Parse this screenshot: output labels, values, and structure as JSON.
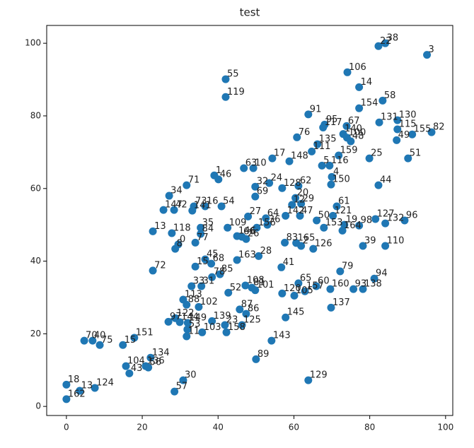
{
  "chart_data": {
    "type": "scatter",
    "title": "test",
    "color": "#1f77b4",
    "xlim": [
      -5.2,
      101.9
    ],
    "ylim": [
      -2.5,
      104.9
    ],
    "xticks": [
      0,
      20,
      40,
      60,
      80,
      100
    ],
    "yticks": [
      0,
      20,
      40,
      60,
      80,
      100
    ],
    "point_labels": [
      "3",
      "18",
      "162",
      "13",
      "22",
      "38",
      "106",
      "14",
      "58",
      "154",
      "55",
      "119",
      "91",
      "130",
      "131",
      "115",
      "82",
      "155",
      "49",
      "95",
      "117",
      "67",
      "76",
      "140",
      "100",
      "48",
      "135",
      "111",
      "159",
      "25",
      "51",
      "17",
      "148",
      "5",
      "116",
      "63",
      "10",
      "1",
      "46",
      "4",
      "150",
      "44",
      "71",
      "32",
      "24",
      "128",
      "62",
      "34",
      "69",
      "20",
      "29",
      "147",
      "42",
      "73",
      "16",
      "54",
      "141",
      "61",
      "12",
      "27",
      "64",
      "142",
      "47",
      "121",
      "50",
      "127",
      "132",
      "96",
      "19",
      "98",
      "164",
      "153",
      "156",
      "36",
      "35",
      "109",
      "13",
      "118",
      "84",
      "146",
      "66",
      "26",
      "83",
      "165",
      "2",
      "126",
      "39",
      "110",
      "0",
      "8",
      "77",
      "28",
      "163",
      "41",
      "72",
      "45",
      "15",
      "68",
      "85",
      "79",
      "78",
      "33",
      "31",
      "94",
      "65",
      "60",
      "160",
      "93",
      "138",
      "108",
      "81",
      "101",
      "52",
      "120",
      "157",
      "105",
      "113",
      "88",
      "102",
      "87",
      "86",
      "137",
      "145",
      "139",
      "23",
      "125",
      "97",
      "122",
      "144",
      "149",
      "53",
      "103",
      "158",
      "11",
      "143",
      "70",
      "40",
      "75",
      "151",
      "15",
      "89",
      "134",
      "104",
      "43",
      "136",
      "56",
      "30",
      "57",
      "124",
      "129"
    ],
    "x": [
      95.1,
      0,
      0,
      3.5,
      82.3,
      84.1,
      74.1,
      77.2,
      83.4,
      77.2,
      42,
      42,
      63.8,
      87.3,
      82.5,
      87.3,
      96.3,
      91.2,
      87.1,
      68.1,
      67.7,
      73.9,
      60.8,
      73,
      74,
      75,
      66.2,
      64.7,
      71.8,
      79.9,
      90.1,
      54.3,
      58.8,
      67.4,
      69.4,
      46.8,
      49.3,
      39,
      40.1,
      70,
      69.8,
      82.3,
      31.7,
      49.8,
      53.5,
      56.9,
      61.2,
      27.1,
      49.8,
      60.4,
      61.9,
      25.6,
      28.4,
      33.6,
      36.6,
      40.9,
      33.2,
      71.3,
      59.5,
      47.9,
      52.6,
      57.8,
      61.6,
      70.3,
      66,
      81.5,
      84.1,
      89.2,
      73.3,
      77.2,
      72.8,
      67.9,
      50.2,
      53,
      35.4,
      42.5,
      22.8,
      27.8,
      35.4,
      45,
      46.3,
      47.4,
      57.6,
      60.6,
      61.9,
      65.1,
      78.2,
      84.1,
      29.5,
      28.7,
      34,
      50.7,
      45,
      56.7,
      22.8,
      36.6,
      34,
      38.2,
      40.5,
      72.2,
      38.4,
      33,
      35.6,
      81.2,
      61.2,
      65.9,
      69.6,
      75.7,
      78.2,
      47.2,
      48.9,
      49.8,
      42.7,
      56.9,
      62.9,
      60.1,
      30.8,
      31.7,
      34.9,
      45.7,
      47.4,
      69.8,
      57.8,
      38.4,
      41.8,
      46.3,
      26.9,
      28.7,
      29.9,
      32,
      31.9,
      35.8,
      42.2,
      31.7,
      54.1,
      4.7,
      6.9,
      8.8,
      17.9,
      14.9,
      50,
      22.2,
      15.7,
      16.6,
      20.9,
      21.6,
      30.8,
      28.5,
      7.5,
      63.8
    ],
    "y": [
      96.8,
      6,
      2,
      4.3,
      99.2,
      100,
      92,
      87.9,
      84.2,
      82.1,
      90.1,
      85.2,
      80.4,
      78.8,
      78.2,
      76.3,
      75.5,
      74.9,
      73.3,
      77.6,
      76.8,
      77.2,
      74.1,
      75,
      74,
      73,
      72.2,
      70.2,
      69.1,
      68.3,
      68.3,
      68.3,
      67.5,
      66.3,
      66.3,
      65.6,
      65.6,
      63.6,
      62.5,
      63.2,
      61.1,
      60.9,
      60.9,
      60.5,
      61.5,
      60.1,
      60.7,
      58,
      57.8,
      57.4,
      55.8,
      54.1,
      54.1,
      55.1,
      55.1,
      55.1,
      53.9,
      55.1,
      55.5,
      52.3,
      51.8,
      52.5,
      52.5,
      52.5,
      51.2,
      51.6,
      50.4,
      51.2,
      50,
      49.8,
      48.4,
      49.2,
      49.2,
      50,
      49.2,
      49.2,
      48.2,
      47.7,
      47.5,
      46.9,
      46.7,
      46.1,
      45.1,
      45,
      44.2,
      43.4,
      44.2,
      44.2,
      44.6,
      43.4,
      45.1,
      41.4,
      40.3,
      38.3,
      37.4,
      40.5,
      38.5,
      39.3,
      36.4,
      37.2,
      35.6,
      33.1,
      33.1,
      35.2,
      33.9,
      33.1,
      32.3,
      32.3,
      32.3,
      33.3,
      32.7,
      32,
      31.3,
      31.1,
      31.7,
      30.5,
      29.4,
      28,
      27.4,
      26.7,
      25.5,
      27.2,
      24.5,
      23.5,
      22.4,
      22.4,
      23.3,
      24.3,
      23.2,
      23,
      21.2,
      20.4,
      20.4,
      19.3,
      18.1,
      18.1,
      18.1,
      16.9,
      18.9,
      16.9,
      13,
      13.4,
      11.1,
      9.1,
      11.1,
      10.7,
      7.2,
      4.1,
      5.1,
      7.2
    ]
  }
}
